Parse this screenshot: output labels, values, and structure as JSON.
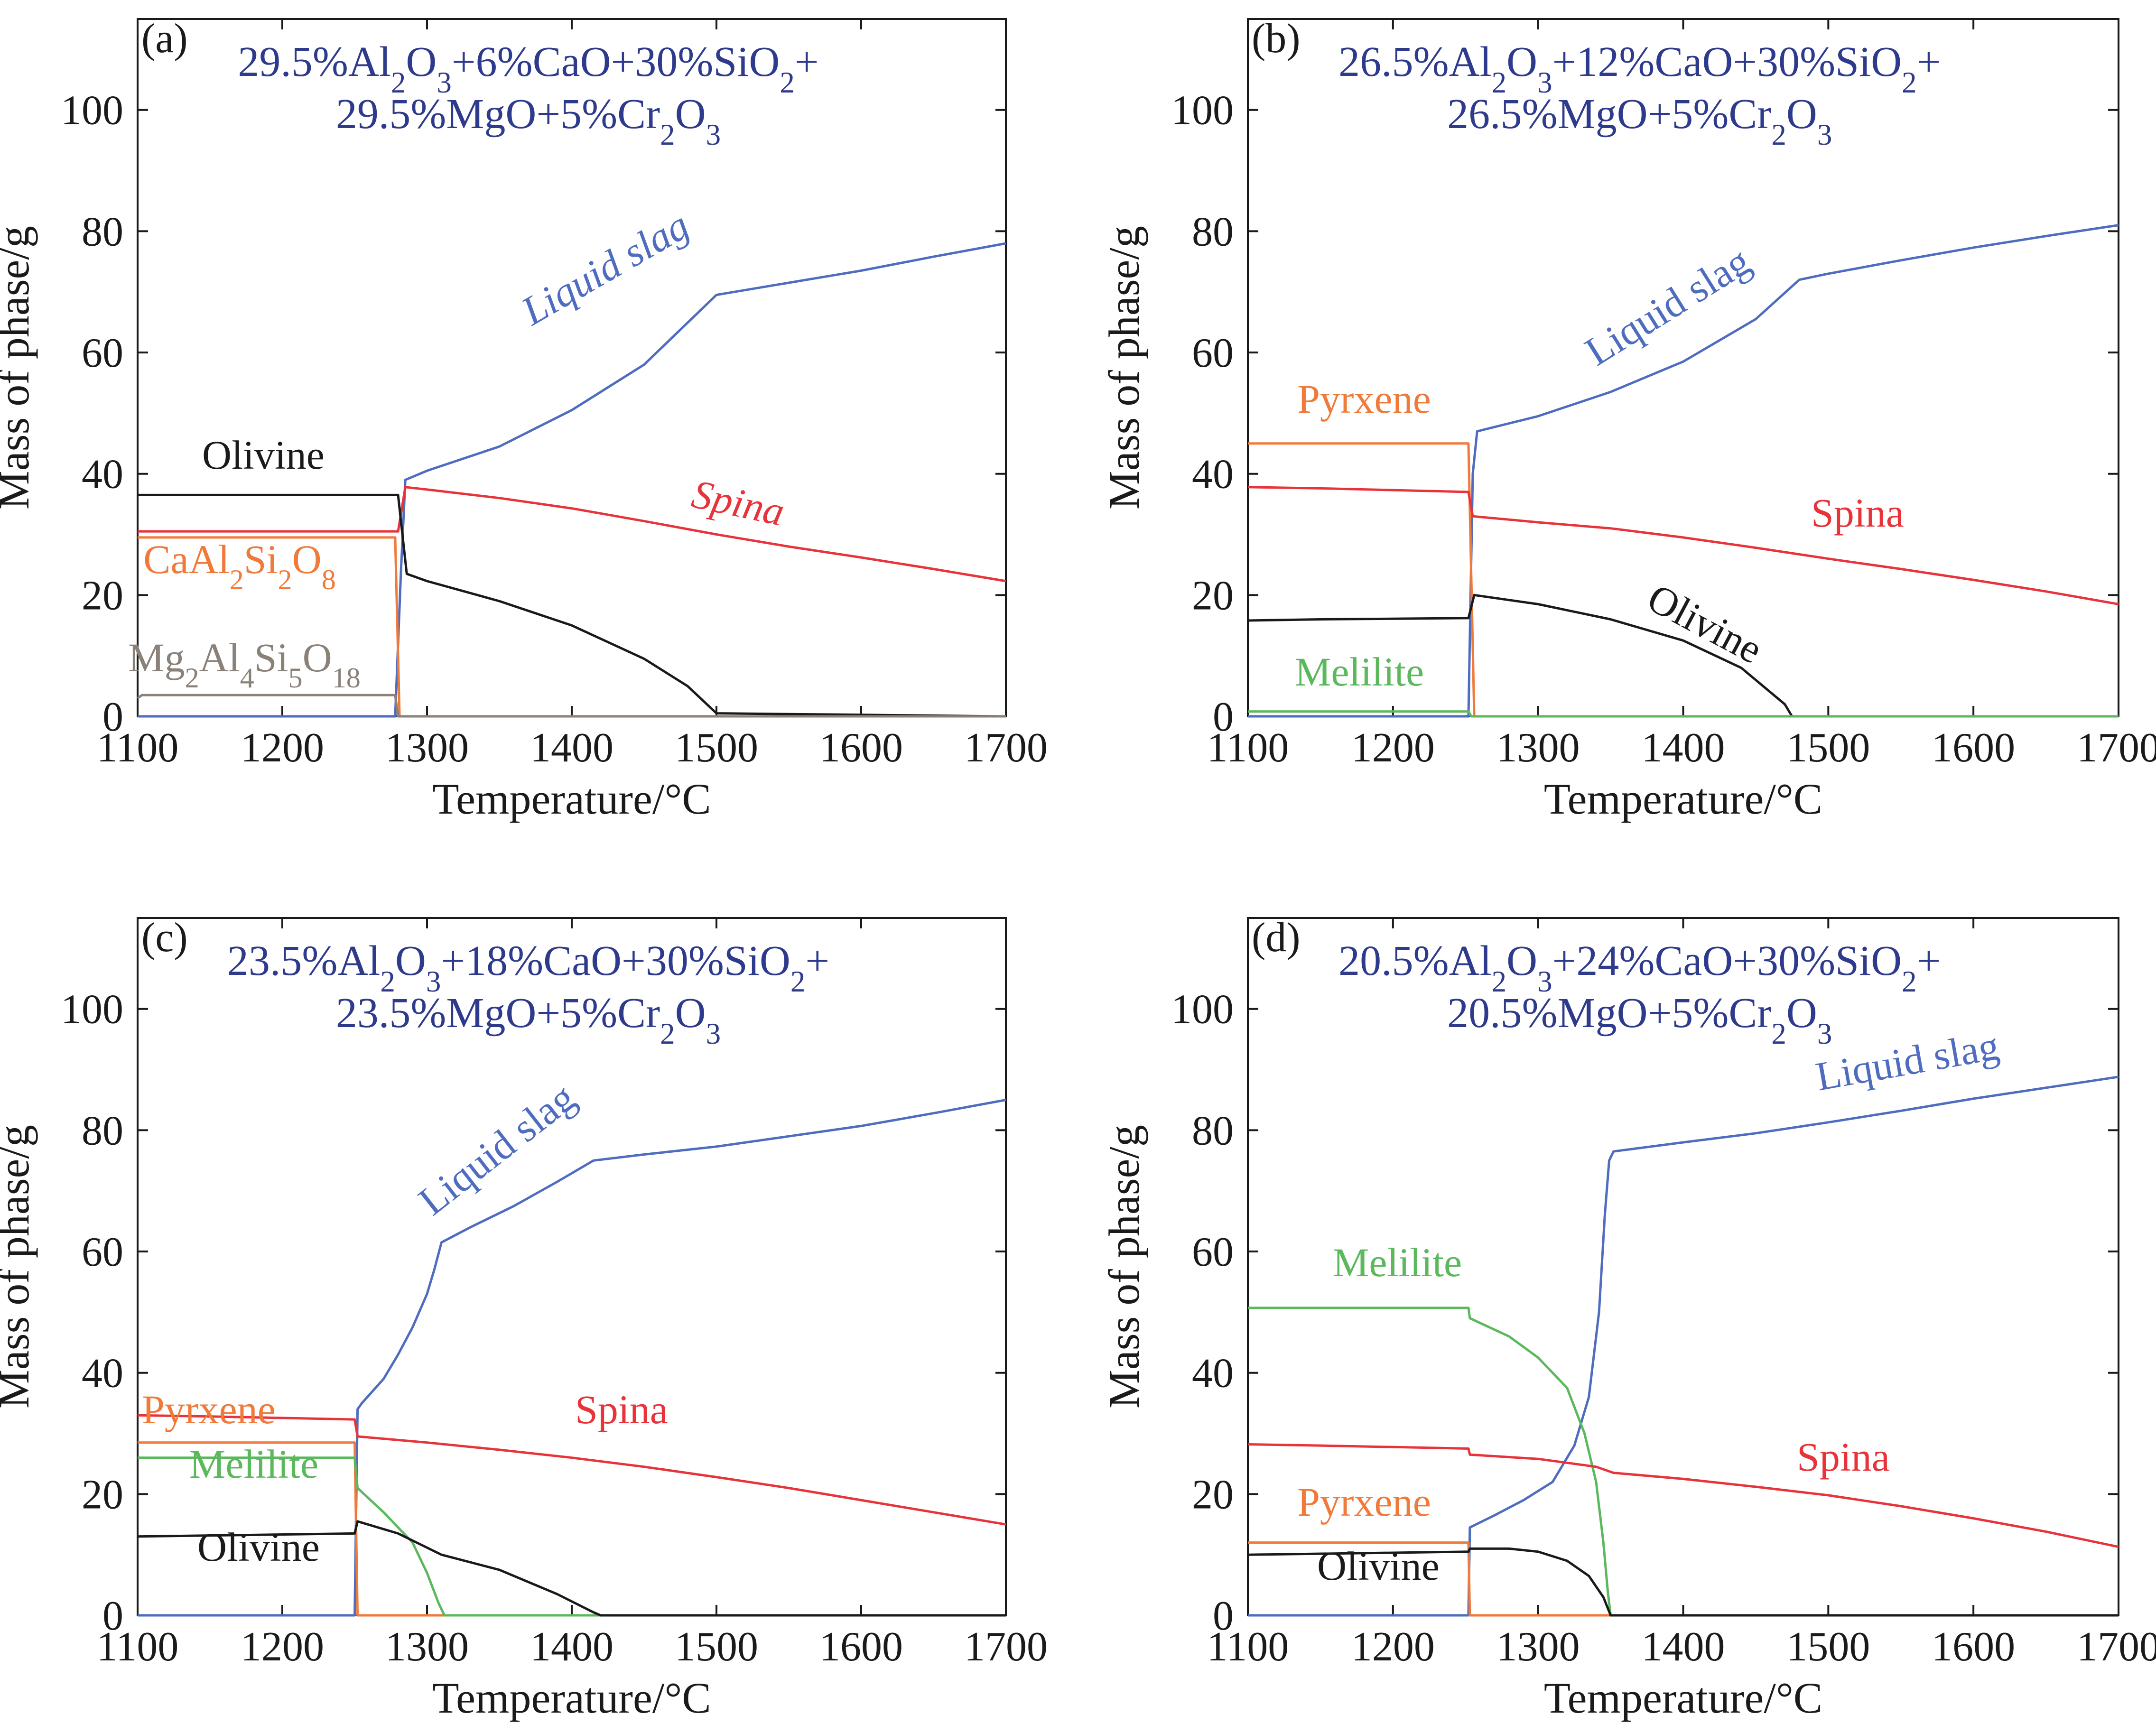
{
  "figure": {
    "panel_count": 4
  },
  "chart_data": [
    {
      "type": "line",
      "panel": "(a)",
      "composition": [
        "29.5%Al₂O₃+6%CaO+30%SiO₂+",
        "29.5%MgO+5%Cr₂O₃"
      ],
      "xlabel": "Temperature/°C",
      "ylabel": "Mass of phase/g",
      "xlim": [
        1100,
        1700
      ],
      "ylim": [
        0,
        115
      ],
      "xticks": [
        1100,
        1200,
        1300,
        1400,
        1500,
        1600,
        1700
      ],
      "yticks": [
        0,
        20,
        40,
        60,
        80,
        100
      ],
      "series": [
        {
          "name": "Liquid slag",
          "color": "#4e6cc0",
          "label_style": "italic-rotated",
          "points": [
            [
              1100,
              0
            ],
            [
              1278,
              0
            ],
            [
              1282,
              24
            ],
            [
              1285,
              39
            ],
            [
              1300,
              40.5
            ],
            [
              1350,
              44.5
            ],
            [
              1400,
              50.5
            ],
            [
              1450,
              58
            ],
            [
              1500,
              69.5
            ],
            [
              1550,
              71.5
            ],
            [
              1600,
              73.5
            ],
            [
              1650,
              75.8
            ],
            [
              1700,
              78
            ]
          ]
        },
        {
          "name": "Spina",
          "color": "#e8333a",
          "label_style": "italic",
          "points": [
            [
              1100,
              30.5
            ],
            [
              1280,
              30.5
            ],
            [
              1285,
              37.8
            ],
            [
              1300,
              37.4
            ],
            [
              1350,
              36
            ],
            [
              1400,
              34.3
            ],
            [
              1450,
              32.2
            ],
            [
              1500,
              30
            ],
            [
              1550,
              28
            ],
            [
              1600,
              26.2
            ],
            [
              1650,
              24.3
            ],
            [
              1700,
              22.3
            ]
          ]
        },
        {
          "name": "Olivine",
          "color": "#1a1a1a",
          "label_style": "normal",
          "points": [
            [
              1100,
              36.5
            ],
            [
              1280,
              36.5
            ],
            [
              1283,
              30
            ],
            [
              1286,
              23.5
            ],
            [
              1300,
              22.3
            ],
            [
              1350,
              19
            ],
            [
              1400,
              15
            ],
            [
              1450,
              9.5
            ],
            [
              1480,
              5
            ],
            [
              1500,
              0.5
            ],
            [
              1700,
              0
            ]
          ]
        },
        {
          "name": "CaAl₂Si₂O₈",
          "color": "#f07a3a",
          "label_style": "normal",
          "points": [
            [
              1100,
              29.5
            ],
            [
              1278,
              29.5
            ],
            [
              1281,
              0
            ],
            [
              1700,
              0
            ]
          ]
        },
        {
          "name": "Mg₂Al₄Si₅O₁₈",
          "color": "#8a8178",
          "label_style": "normal",
          "points": [
            [
              1100,
              3
            ],
            [
              1103,
              3.5
            ],
            [
              1278,
              3.5
            ],
            [
              1280,
              0
            ],
            [
              1700,
              0
            ]
          ]
        }
      ]
    },
    {
      "type": "line",
      "panel": "(b)",
      "composition": [
        "26.5%Al₂O₃+12%CaO+30%SiO₂+",
        "26.5%MgO+5%Cr₂O₃"
      ],
      "xlabel": "Temperature/°C",
      "ylabel": "Mass of phase/g",
      "xlim": [
        1100,
        1700
      ],
      "ylim": [
        0,
        115
      ],
      "xticks": [
        1100,
        1200,
        1300,
        1400,
        1500,
        1600,
        1700
      ],
      "yticks": [
        0,
        20,
        40,
        60,
        80,
        100
      ],
      "series": [
        {
          "name": "Liquid slag",
          "color": "#4e6cc0",
          "label_style": "rotated",
          "points": [
            [
              1100,
              0
            ],
            [
              1252,
              0
            ],
            [
              1255,
              40
            ],
            [
              1258,
              47
            ],
            [
              1300,
              49.5
            ],
            [
              1350,
              53.5
            ],
            [
              1400,
              58.5
            ],
            [
              1450,
              65.5
            ],
            [
              1480,
              72
            ],
            [
              1500,
              73
            ],
            [
              1550,
              75.2
            ],
            [
              1600,
              77.3
            ],
            [
              1650,
              79.2
            ],
            [
              1700,
              81
            ]
          ]
        },
        {
          "name": "Pyrxene",
          "color": "#f07a3a",
          "label_style": "normal",
          "points": [
            [
              1100,
              45
            ],
            [
              1252,
              45
            ],
            [
              1256,
              0
            ],
            [
              1700,
              0
            ]
          ]
        },
        {
          "name": "Spina",
          "color": "#e8333a",
          "label_style": "normal",
          "points": [
            [
              1100,
              37.8
            ],
            [
              1150,
              37.6
            ],
            [
              1252,
              37
            ],
            [
              1255,
              33
            ],
            [
              1300,
              32
            ],
            [
              1350,
              31
            ],
            [
              1400,
              29.5
            ],
            [
              1450,
              27.8
            ],
            [
              1500,
              26
            ],
            [
              1550,
              24.3
            ],
            [
              1600,
              22.5
            ],
            [
              1650,
              20.6
            ],
            [
              1700,
              18.5
            ]
          ]
        },
        {
          "name": "Olivine",
          "color": "#1a1a1a",
          "label_style": "rotated",
          "points": [
            [
              1100,
              15.8
            ],
            [
              1150,
              16
            ],
            [
              1252,
              16.2
            ],
            [
              1256,
              20
            ],
            [
              1300,
              18.5
            ],
            [
              1350,
              16
            ],
            [
              1400,
              12.5
            ],
            [
              1440,
              8
            ],
            [
              1470,
              2
            ],
            [
              1475,
              0
            ],
            [
              1700,
              0
            ]
          ]
        },
        {
          "name": "Melilite",
          "color": "#5cb85c",
          "label_style": "normal",
          "points": [
            [
              1100,
              0.8
            ],
            [
              1252,
              0.8
            ],
            [
              1254,
              0
            ],
            [
              1700,
              0
            ]
          ]
        }
      ]
    },
    {
      "type": "line",
      "panel": "(c)",
      "composition": [
        "23.5%Al₂O₃+18%CaO+30%SiO₂+",
        "23.5%MgO+5%Cr₂O₃"
      ],
      "xlabel": "Temperature/°C",
      "ylabel": "Mass of phase/g",
      "xlim": [
        1100,
        1700
      ],
      "ylim": [
        0,
        115
      ],
      "xticks": [
        1100,
        1200,
        1300,
        1400,
        1500,
        1600,
        1700
      ],
      "yticks": [
        0,
        20,
        40,
        60,
        80,
        100
      ],
      "series": [
        {
          "name": "Liquid slag",
          "color": "#4e6cc0",
          "label_style": "rotated",
          "points": [
            [
              1100,
              0
            ],
            [
              1250,
              0
            ],
            [
              1252,
              34
            ],
            [
              1255,
              35
            ],
            [
              1270,
              39
            ],
            [
              1280,
              43
            ],
            [
              1290,
              47.5
            ],
            [
              1300,
              53
            ],
            [
              1305,
              57
            ],
            [
              1310,
              61.5
            ],
            [
              1330,
              64
            ],
            [
              1360,
              67.5
            ],
            [
              1390,
              71.5
            ],
            [
              1415,
              75
            ],
            [
              1450,
              76
            ],
            [
              1500,
              77.3
            ],
            [
              1550,
              79
            ],
            [
              1600,
              80.7
            ],
            [
              1650,
              82.8
            ],
            [
              1700,
              85
            ]
          ]
        },
        {
          "name": "Spina",
          "color": "#e8333a",
          "label_style": "normal",
          "points": [
            [
              1100,
              33
            ],
            [
              1150,
              32.8
            ],
            [
              1250,
              32.3
            ],
            [
              1252,
              29.5
            ],
            [
              1300,
              28.5
            ],
            [
              1350,
              27.3
            ],
            [
              1400,
              26
            ],
            [
              1450,
              24.5
            ],
            [
              1500,
              22.8
            ],
            [
              1550,
              21
            ],
            [
              1600,
              19
            ],
            [
              1650,
              17
            ],
            [
              1700,
              15
            ]
          ]
        },
        {
          "name": "Pyrxene",
          "color": "#f07a3a",
          "label_style": "small",
          "points": [
            [
              1100,
              28.5
            ],
            [
              1250,
              28.5
            ],
            [
              1252,
              0
            ],
            [
              1700,
              0
            ]
          ]
        },
        {
          "name": "Melilite",
          "color": "#5cb85c",
          "label_style": "normal",
          "points": [
            [
              1100,
              26
            ],
            [
              1250,
              26
            ],
            [
              1252,
              21
            ],
            [
              1270,
              17
            ],
            [
              1290,
              12
            ],
            [
              1300,
              7
            ],
            [
              1308,
              2
            ],
            [
              1312,
              0
            ],
            [
              1700,
              0
            ]
          ]
        },
        {
          "name": "Olivine",
          "color": "#1a1a1a",
          "label_style": "normal",
          "points": [
            [
              1100,
              13
            ],
            [
              1250,
              13.5
            ],
            [
              1252,
              15.5
            ],
            [
              1280,
              13.5
            ],
            [
              1310,
              10
            ],
            [
              1350,
              7.5
            ],
            [
              1390,
              3.5
            ],
            [
              1415,
              0.5
            ],
            [
              1420,
              0
            ],
            [
              1700,
              0
            ]
          ]
        }
      ]
    },
    {
      "type": "line",
      "panel": "(d)",
      "composition": [
        "20.5%Al₂O₃+24%CaO+30%SiO₂+",
        "20.5%MgO+5%Cr₂O₃"
      ],
      "xlabel": "Temperature/°C",
      "ylabel": "Mass of phase/g",
      "xlim": [
        1100,
        1700
      ],
      "ylim": [
        0,
        115
      ],
      "xticks": [
        1100,
        1200,
        1300,
        1400,
        1500,
        1600,
        1700
      ],
      "yticks": [
        0,
        20,
        40,
        60,
        80,
        100
      ],
      "series": [
        {
          "name": "Liquid slag",
          "color": "#4e6cc0",
          "label_style": "rotated",
          "points": [
            [
              1100,
              0
            ],
            [
              1252,
              0
            ],
            [
              1253,
              14.5
            ],
            [
              1270,
              16.5
            ],
            [
              1290,
              19
            ],
            [
              1310,
              22
            ],
            [
              1325,
              28
            ],
            [
              1335,
              36
            ],
            [
              1342,
              50
            ],
            [
              1346,
              66
            ],
            [
              1349,
              75
            ],
            [
              1352,
              76.5
            ],
            [
              1400,
              78
            ],
            [
              1450,
              79.5
            ],
            [
              1500,
              81.3
            ],
            [
              1550,
              83.2
            ],
            [
              1600,
              85.2
            ],
            [
              1650,
              87
            ],
            [
              1700,
              88.8
            ]
          ]
        },
        {
          "name": "Melilite",
          "color": "#5cb85c",
          "label_style": "normal",
          "points": [
            [
              1100,
              50.7
            ],
            [
              1252,
              50.7
            ],
            [
              1253,
              49
            ],
            [
              1280,
              46
            ],
            [
              1300,
              42.5
            ],
            [
              1320,
              37.5
            ],
            [
              1332,
              30
            ],
            [
              1340,
              22
            ],
            [
              1345,
              12
            ],
            [
              1348,
              4
            ],
            [
              1350,
              0
            ],
            [
              1700,
              0
            ]
          ]
        },
        {
          "name": "Spina",
          "color": "#e8333a",
          "label_style": "normal",
          "points": [
            [
              1100,
              28.2
            ],
            [
              1150,
              28
            ],
            [
              1252,
              27.5
            ],
            [
              1253,
              26.5
            ],
            [
              1300,
              25.8
            ],
            [
              1340,
              24.5
            ],
            [
              1352,
              23.5
            ],
            [
              1400,
              22.5
            ],
            [
              1450,
              21.2
            ],
            [
              1500,
              19.8
            ],
            [
              1550,
              18
            ],
            [
              1600,
              16
            ],
            [
              1650,
              13.8
            ],
            [
              1700,
              11.3
            ]
          ]
        },
        {
          "name": "Pyrxene",
          "color": "#f07a3a",
          "label_style": "normal",
          "points": [
            [
              1100,
              12
            ],
            [
              1252,
              12
            ],
            [
              1253,
              0
            ],
            [
              1700,
              0
            ]
          ]
        },
        {
          "name": "Olivine",
          "color": "#1a1a1a",
          "label_style": "normal",
          "points": [
            [
              1100,
              10
            ],
            [
              1252,
              10.5
            ],
            [
              1253,
              11
            ],
            [
              1280,
              11
            ],
            [
              1300,
              10.5
            ],
            [
              1320,
              9
            ],
            [
              1335,
              6.5
            ],
            [
              1345,
              3
            ],
            [
              1350,
              0
            ],
            [
              1700,
              0
            ]
          ]
        }
      ]
    }
  ]
}
